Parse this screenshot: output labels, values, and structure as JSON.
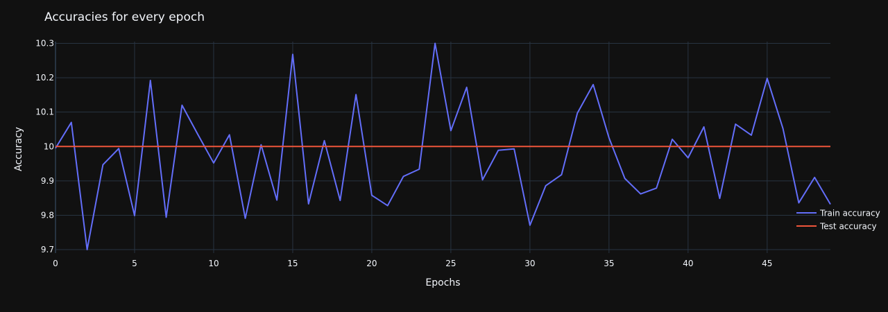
{
  "chart_data": {
    "type": "line",
    "title": "Accuracies for every epoch",
    "xlabel": "Epochs",
    "ylabel": "Accuracy",
    "xlim": [
      0,
      49
    ],
    "ylim": [
      9.69,
      10.305
    ],
    "xticks": [
      0,
      5,
      10,
      15,
      20,
      25,
      30,
      35,
      40,
      45
    ],
    "yticks": [
      9.7,
      9.8,
      9.9,
      10,
      10.1,
      10.2,
      10.3
    ],
    "ytick_labels": [
      "9.7",
      "9.8",
      "9.9",
      "10",
      "10.1",
      "10.2",
      "10.3"
    ],
    "grid": true,
    "legend_position": "right",
    "x": [
      0,
      1,
      2,
      3,
      4,
      5,
      6,
      7,
      8,
      9,
      10,
      11,
      12,
      13,
      14,
      15,
      16,
      17,
      18,
      19,
      20,
      21,
      22,
      23,
      24,
      25,
      26,
      27,
      28,
      29,
      30,
      31,
      32,
      33,
      34,
      35,
      36,
      37,
      38,
      39,
      40,
      41,
      42,
      43,
      44,
      45,
      46,
      47,
      48,
      49
    ],
    "series": [
      {
        "name": "Train accuracy",
        "color": "#636efa",
        "values": [
          9.995,
          10.07,
          9.7,
          9.947,
          9.994,
          9.799,
          10.192,
          9.794,
          10.12,
          10.035,
          9.952,
          10.034,
          9.791,
          10.005,
          9.844,
          10.268,
          9.833,
          10.017,
          9.843,
          10.151,
          9.858,
          9.828,
          9.913,
          9.934,
          10.3,
          10.046,
          10.172,
          9.903,
          9.989,
          9.993,
          9.771,
          9.886,
          9.918,
          10.097,
          10.18,
          10.025,
          9.907,
          9.862,
          9.879,
          10.021,
          9.967,
          10.057,
          9.849,
          10.065,
          10.033,
          10.198,
          10.052,
          9.836,
          9.91,
          9.832
        ]
      },
      {
        "name": "Test accuracy",
        "color": "#ef553b",
        "values": [
          10,
          10,
          10,
          10,
          10,
          10,
          10,
          10,
          10,
          10,
          10,
          10,
          10,
          10,
          10,
          10,
          10,
          10,
          10,
          10,
          10,
          10,
          10,
          10,
          10,
          10,
          10,
          10,
          10,
          10,
          10,
          10,
          10,
          10,
          10,
          10,
          10,
          10,
          10,
          10,
          10,
          10,
          10,
          10,
          10,
          10,
          10,
          10,
          10,
          10
        ]
      }
    ]
  }
}
